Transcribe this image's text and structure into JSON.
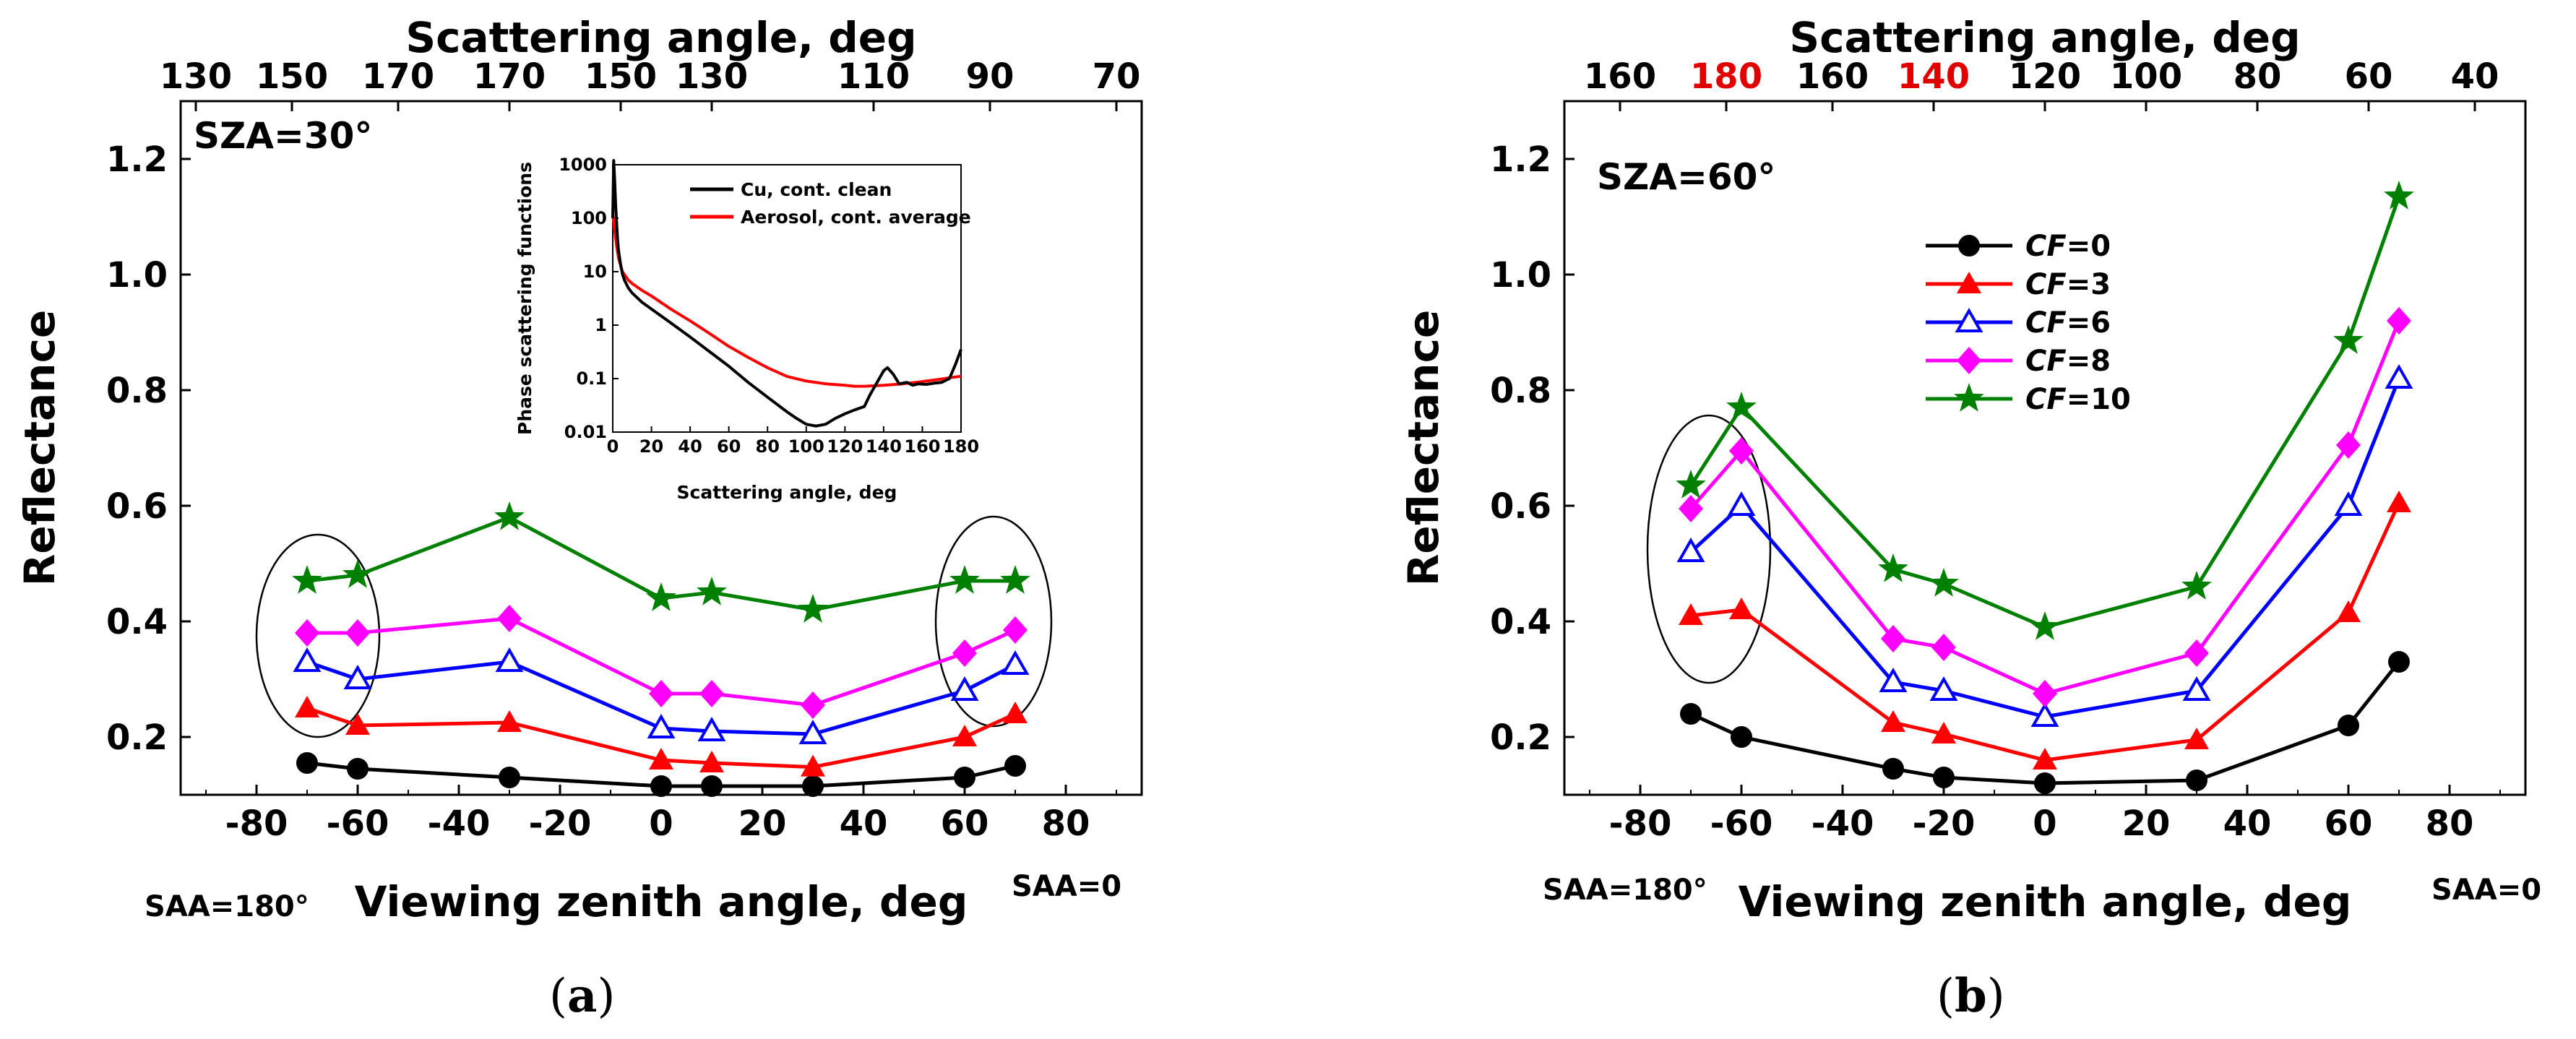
{
  "chart_data": [
    {
      "id": "a",
      "type": "line",
      "caption": "(a)",
      "caption_letter": "a",
      "annotation": "SZA=30°",
      "xlabel": "Viewing zenith angle, deg",
      "ylabel": "Reflectance",
      "top_xlabel": "Scattering angle, deg",
      "xlim": [
        -95,
        95
      ],
      "ylim": [
        0.1,
        1.3
      ],
      "xticks": [
        -80,
        -60,
        -40,
        -20,
        0,
        20,
        40,
        60,
        80
      ],
      "yticks": [
        0.2,
        0.4,
        0.6,
        0.8,
        1.0,
        1.2
      ],
      "ytick_labels": [
        "0.2",
        "0.4",
        "0.6",
        "0.8",
        "1.0",
        "1.2"
      ],
      "top_ticks": [
        {
          "at": -92,
          "label": "130",
          "color": "#000000"
        },
        {
          "at": -73,
          "label": "150",
          "color": "#000000"
        },
        {
          "at": -52,
          "label": "170",
          "color": "#000000"
        },
        {
          "at": -30,
          "label": "170",
          "color": "#000000"
        },
        {
          "at": -8,
          "label": "150",
          "color": "#000000"
        },
        {
          "at": 10,
          "label": "130",
          "color": "#000000"
        },
        {
          "at": 42,
          "label": "110",
          "color": "#000000"
        },
        {
          "at": 65,
          "label": "90",
          "color": "#000000"
        },
        {
          "at": 90,
          "label": "70",
          "color": "#000000"
        }
      ],
      "left_label": "SAA=180°",
      "right_label": "SAA=0",
      "x": [
        -70,
        -60,
        -30,
        0,
        10,
        30,
        60,
        70
      ],
      "series": [
        {
          "name": "CF=0",
          "cf": "0",
          "color": "#000000",
          "marker": "circle",
          "values": [
            0.155,
            0.145,
            0.13,
            0.115,
            0.115,
            0.115,
            0.13,
            0.15
          ]
        },
        {
          "name": "CF=3",
          "cf": "3",
          "color": "#ff0000",
          "marker": "triangle",
          "values": [
            0.25,
            0.22,
            0.225,
            0.16,
            0.155,
            0.148,
            0.2,
            0.24
          ]
        },
        {
          "name": "CF=6",
          "cf": "6",
          "color": "#0000ff",
          "marker": "triangle-open",
          "values": [
            0.33,
            0.3,
            0.33,
            0.215,
            0.21,
            0.205,
            0.28,
            0.325
          ]
        },
        {
          "name": "CF=8",
          "cf": "8",
          "color": "#ff00ff",
          "marker": "diamond",
          "values": [
            0.38,
            0.38,
            0.405,
            0.275,
            0.275,
            0.255,
            0.345,
            0.385
          ]
        },
        {
          "name": "CF=10",
          "cf": "10",
          "color": "#008000",
          "marker": "star",
          "values": [
            0.47,
            0.48,
            0.58,
            0.44,
            0.45,
            0.42,
            0.47,
            0.47
          ]
        }
      ],
      "inset": {
        "xlabel": "Scattering angle, deg",
        "ylabel": "Phase scattering functions",
        "xlim": [
          0,
          180
        ],
        "ylog": true,
        "ylim": [
          0.01,
          1000
        ],
        "xticks": [
          0,
          20,
          40,
          60,
          80,
          100,
          120,
          140,
          160,
          180
        ],
        "yticks": [
          0.01,
          0.1,
          1,
          10,
          100,
          1000
        ],
        "ytick_labels": [
          "0.01",
          "0.1",
          "1",
          "10",
          "100",
          "1000"
        ],
        "series": [
          {
            "name": "Cu, cont. clean",
            "color": "#000000",
            "x": [
              0,
              0.5,
              1,
              1.5,
              2,
              2.5,
              3,
              4,
              5,
              6,
              8,
              10,
              15,
              20,
              30,
              40,
              50,
              60,
              70,
              80,
              90,
              95,
              100,
              105,
              110,
              115,
              120,
              125,
              130,
              133,
              137,
              140,
              142,
              145,
              148,
              152,
              155,
              158,
              162,
              166,
              170,
              174,
              177,
              180
            ],
            "y": [
              100,
              1200,
              500,
              180,
              80,
              40,
              25,
              14,
              9,
              7,
              5,
              4,
              2.7,
              2,
              1.1,
              0.6,
              0.32,
              0.17,
              0.085,
              0.045,
              0.024,
              0.018,
              0.014,
              0.013,
              0.014,
              0.018,
              0.022,
              0.026,
              0.03,
              0.05,
              0.09,
              0.14,
              0.16,
              0.12,
              0.08,
              0.085,
              0.075,
              0.08,
              0.078,
              0.082,
              0.085,
              0.1,
              0.18,
              0.35
            ]
          },
          {
            "name": "Aerosol, cont. average",
            "color": "#ff0000",
            "x": [
              0,
              1,
              2,
              3,
              5,
              8,
              10,
              15,
              20,
              30,
              40,
              50,
              60,
              70,
              80,
              90,
              100,
              110,
              120,
              125,
              130,
              140,
              150,
              160,
              170,
              175,
              180
            ],
            "y": [
              120,
              60,
              30,
              18,
              10,
              7,
              6,
              4.5,
              3.5,
              2,
              1.2,
              0.7,
              0.4,
              0.25,
              0.16,
              0.11,
              0.09,
              0.08,
              0.075,
              0.072,
              0.072,
              0.075,
              0.08,
              0.088,
              0.098,
              0.105,
              0.11
            ]
          }
        ]
      }
    },
    {
      "id": "b",
      "type": "line",
      "caption": "(b)",
      "caption_letter": "b",
      "annotation": "SZA=60°",
      "xlabel": "Viewing zenith angle, deg",
      "ylabel": "Reflectance",
      "top_xlabel": "Scattering angle, deg",
      "xlim": [
        -95,
        95
      ],
      "ylim": [
        0.1,
        1.3
      ],
      "xticks": [
        -80,
        -60,
        -40,
        -20,
        0,
        20,
        40,
        60,
        80
      ],
      "yticks": [
        0.2,
        0.4,
        0.6,
        0.8,
        1.0,
        1.2
      ],
      "ytick_labels": [
        "0.2",
        "0.4",
        "0.6",
        "0.8",
        "1.0",
        "1.2"
      ],
      "top_ticks": [
        {
          "at": -84,
          "label": "160",
          "color": "#000000"
        },
        {
          "at": -63,
          "label": "180",
          "color": "#e00000"
        },
        {
          "at": -42,
          "label": "160",
          "color": "#000000"
        },
        {
          "at": -22,
          "label": "140",
          "color": "#e00000"
        },
        {
          "at": 0,
          "label": "120",
          "color": "#000000"
        },
        {
          "at": 20,
          "label": "100",
          "color": "#000000"
        },
        {
          "at": 42,
          "label": "80",
          "color": "#000000"
        },
        {
          "at": 64,
          "label": "60",
          "color": "#000000"
        },
        {
          "at": 85,
          "label": "40",
          "color": "#000000"
        }
      ],
      "left_label": "SAA=180°",
      "right_label": "SAA=0",
      "x": [
        -70,
        -60,
        -30,
        -20,
        0,
        30,
        60,
        70
      ],
      "series": [
        {
          "name": "CF=0",
          "cf": "0",
          "color": "#000000",
          "marker": "circle",
          "values": [
            0.24,
            0.2,
            0.145,
            0.13,
            0.12,
            0.125,
            0.22,
            0.33
          ]
        },
        {
          "name": "CF=3",
          "cf": "3",
          "color": "#ff0000",
          "marker": "triangle",
          "values": [
            0.41,
            0.42,
            0.225,
            0.205,
            0.16,
            0.195,
            0.415,
            0.605
          ]
        },
        {
          "name": "CF=6",
          "cf": "6",
          "color": "#0000ff",
          "marker": "triangle-open",
          "values": [
            0.52,
            0.6,
            0.295,
            0.28,
            0.235,
            0.28,
            0.6,
            0.82
          ]
        },
        {
          "name": "CF=8",
          "cf": "8",
          "color": "#ff00ff",
          "marker": "diamond",
          "values": [
            0.595,
            0.695,
            0.37,
            0.355,
            0.275,
            0.345,
            0.705,
            0.92
          ]
        },
        {
          "name": "CF=10",
          "cf": "10",
          "color": "#008000",
          "marker": "star",
          "values": [
            0.635,
            0.77,
            0.49,
            0.465,
            0.39,
            0.46,
            0.885,
            1.135
          ]
        }
      ],
      "legend_prefix": "CF"
    }
  ]
}
